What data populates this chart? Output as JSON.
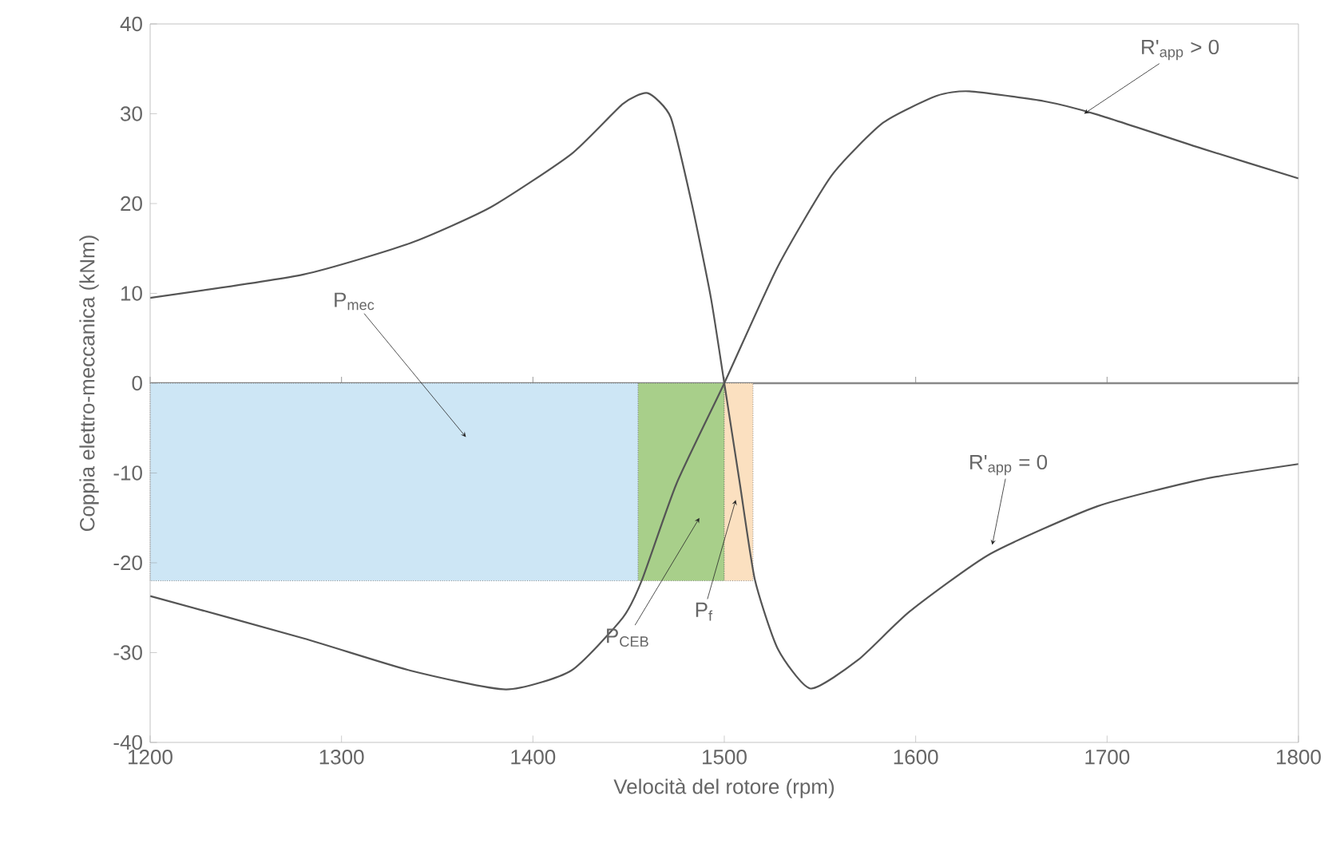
{
  "chart_data": {
    "type": "line",
    "xlabel": "Velocità del rotore (rpm)",
    "ylabel": "Coppia elettro-meccanica (kNm)",
    "xlim": [
      1200,
      1800
    ],
    "ylim": [
      -40,
      40
    ],
    "xticks": [
      1200,
      1300,
      1400,
      1500,
      1600,
      1700,
      1800
    ],
    "yticks": [
      -40,
      -30,
      -20,
      -10,
      0,
      10,
      20,
      30,
      40
    ],
    "grid": false,
    "marker": "none",
    "line_style": "solid",
    "ref_lines": [
      {
        "axis": "y",
        "value": 0,
        "color": "#888888"
      }
    ],
    "series": [
      {
        "type": "area",
        "color": "#cde6f5",
        "x": [
          1200,
          1455
        ],
        "values": [
          -22,
          -22
        ]
      },
      {
        "type": "area",
        "color": "#a8cf8a",
        "x": [
          1455,
          1500
        ],
        "values": [
          -22,
          -22
        ]
      },
      {
        "type": "area",
        "color": "#fbe0c0",
        "x": [
          1500,
          1515
        ],
        "values": [
          -22,
          -22
        ]
      },
      {
        "type": "line",
        "color": "#555555",
        "x": [
          1200,
          1280,
          1336,
          1378,
          1420,
          1447,
          1460,
          1472,
          1483,
          1493,
          1500,
          1508,
          1516,
          1528,
          1545,
          1570,
          1597,
          1639,
          1695,
          1750,
          1800
        ],
        "values": [
          9.5,
          12.1,
          15.6,
          19.6,
          25.5,
          31.1,
          32.3,
          29.6,
          20,
          9.5,
          0,
          -11,
          -21.9,
          -29.6,
          -34,
          -30.8,
          -25.4,
          -19,
          -13.7,
          -10.7,
          -9
        ]
      },
      {
        "type": "line",
        "color": "#555555",
        "x": [
          1200,
          1280,
          1336,
          1386,
          1420,
          1447,
          1457,
          1475,
          1500,
          1528,
          1556,
          1583,
          1611,
          1628,
          1667,
          1695,
          1750,
          1800
        ],
        "values": [
          -23.7,
          -28.4,
          -32,
          -34.1,
          -32,
          -26.1,
          -21.9,
          -11.2,
          0,
          13,
          23.1,
          29,
          32,
          32.5,
          31.4,
          29.9,
          26.1,
          22.8
        ]
      }
    ],
    "annotations": [
      {
        "text": "P$_{mec}$",
        "x": 1365,
        "y": -6
      },
      {
        "text": "P$_{CEB}$",
        "x": 1487,
        "y": -15
      },
      {
        "text": "P$_{f}$",
        "x": 1506,
        "y": -13
      },
      {
        "text": "R'$_{app}$ > 0",
        "x": 1688,
        "y": 30
      },
      {
        "text": "R'$_{app}$ = 0",
        "x": 1640,
        "y": -18
      }
    ]
  }
}
